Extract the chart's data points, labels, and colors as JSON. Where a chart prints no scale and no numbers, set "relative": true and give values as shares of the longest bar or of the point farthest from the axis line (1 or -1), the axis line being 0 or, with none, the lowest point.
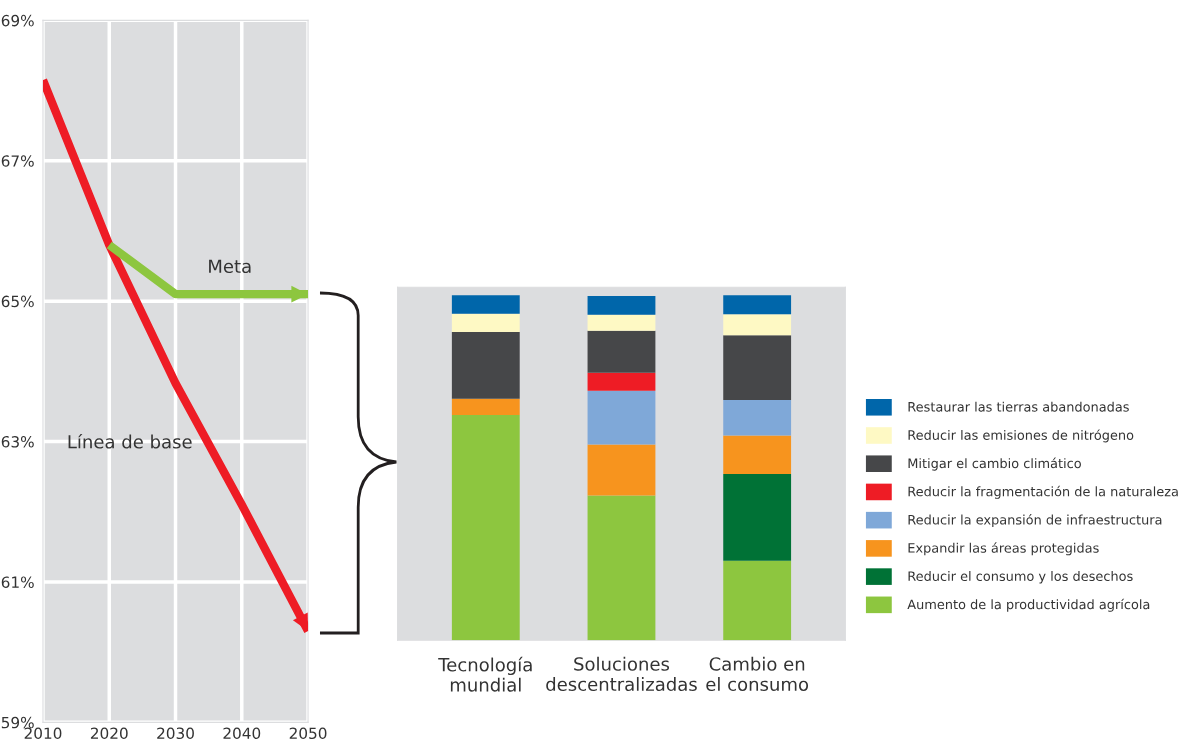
{
  "chart_data": [
    {
      "type": "line",
      "x": [
        2010,
        2020,
        2030,
        2040,
        2050
      ],
      "xlim": [
        2010,
        2050
      ],
      "xticks": [
        2010,
        2020,
        2030,
        2040,
        2050
      ],
      "ylim": [
        59,
        69
      ],
      "yticks": [
        {
          "value": 59,
          "label": "59%"
        },
        {
          "value": 61,
          "label": "61%"
        },
        {
          "value": 63,
          "label": "63%"
        },
        {
          "value": 65,
          "label": "65%"
        },
        {
          "value": 67,
          "label": "67%"
        },
        {
          "value": 69,
          "label": "69%"
        }
      ],
      "grid": true,
      "marker": "none",
      "line_style": "solid",
      "series": [
        {
          "color": "#ee1c25",
          "values": [
            68.15,
            65.8,
            63.83,
            62.1,
            60.3
          ]
        },
        {
          "color": "#8dc63f",
          "x": [
            2020,
            2030,
            2050
          ],
          "values": [
            65.8,
            65.1,
            65.1
          ]
        }
      ],
      "annotations": [
        "Meta",
        "Línea de base"
      ]
    },
    {
      "type": "bar",
      "stacked": true,
      "relative": true,
      "legend": "right",
      "categories": [
        "Tecnología\nmundial",
        "Soluciones\ndescentralizadas",
        "Cambio en\nel consumo"
      ],
      "series": [
        {
          "name": "Aumento de la productividad agrícola",
          "color": "#8dc63f",
          "values": [
            0.653,
            0.419,
            0.23
          ]
        },
        {
          "name": "Reducir el consumo y los desechos",
          "color": "#007236",
          "values": [
            null,
            null,
            0.252
          ]
        },
        {
          "name": "Expandir las áreas protegidas",
          "color": "#f7941e",
          "values": [
            0.047,
            0.148,
            0.111
          ]
        },
        {
          "name": "Reducir la expansión de infraestructura",
          "color": "#7fa8d8",
          "values": [
            null,
            0.156,
            0.103
          ]
        },
        {
          "name": "Reducir la fragmentación de la naturaleza",
          "color": "#ee1c25",
          "values": [
            null,
            0.052,
            null
          ]
        },
        {
          "name": "Mitigar el cambio climático",
          "color": "#464749",
          "values": [
            0.193,
            0.122,
            0.188
          ]
        },
        {
          "name": "Reducir las emisiones de nitrógeno",
          "color": "#fef9c4",
          "values": [
            0.053,
            0.046,
            0.061
          ]
        },
        {
          "name": "Restaurar las tierras abandonadas",
          "color": "#0066aa",
          "values": [
            0.054,
            0.055,
            0.055
          ]
        }
      ]
    }
  ]
}
